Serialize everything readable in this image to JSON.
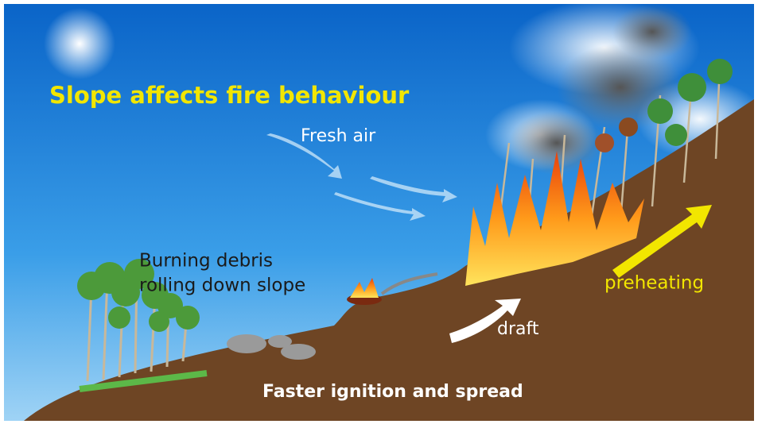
{
  "title": "Slope affects fire behaviour",
  "labels": {
    "fresh_air": "Fresh air",
    "debris": [
      "Burning debris",
      "rolling down slope"
    ],
    "preheating": "preheating",
    "draft": "draft",
    "bottom": "Faster ignition and spread"
  }
}
